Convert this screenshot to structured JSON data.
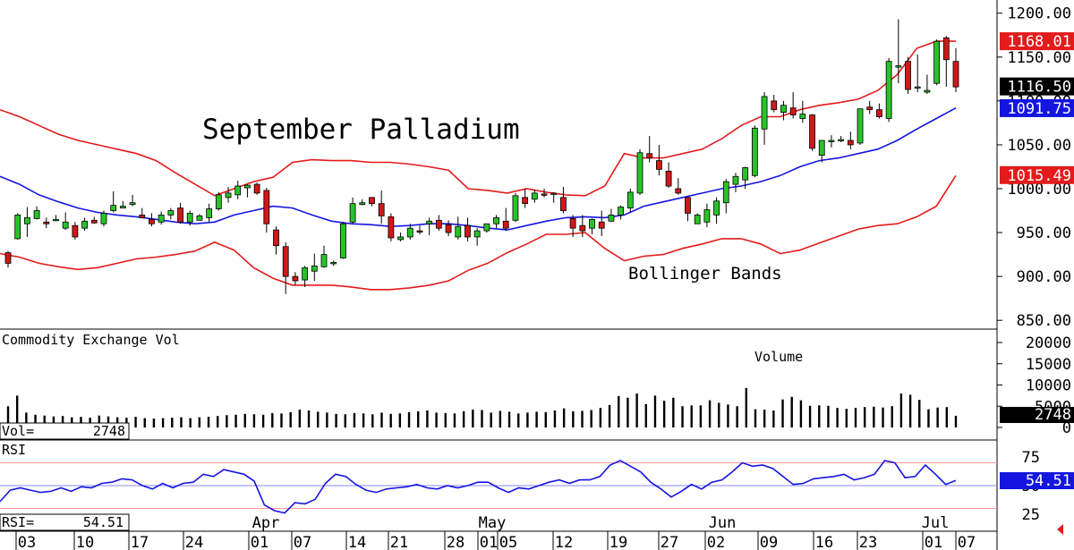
{
  "chart_data": {
    "type": "candlestick",
    "title": "September Palladium",
    "annotations": {
      "bands": "Bollinger Bands",
      "volume": "Volume"
    },
    "price_axis": {
      "ylim": [
        840,
        1215
      ],
      "ticks": [
        "1200.00",
        "1150.00",
        "1100.00",
        "1050.00",
        "1000.00",
        "950.00",
        "900.00",
        "850.00"
      ]
    },
    "price_tags": [
      {
        "text": "1168.01",
        "value": 1168.01,
        "color": "#e31b1b"
      },
      {
        "text": "1116.50",
        "value": 1116.5,
        "color": "#000000"
      },
      {
        "text": "1091.75",
        "value": 1091.75,
        "color": "#1515e0"
      },
      {
        "text": "1015.49",
        "value": 1015.49,
        "color": "#e31b1b"
      }
    ],
    "ohlc": [
      [
        927,
        929,
        910,
        915
      ],
      [
        943,
        972,
        942,
        970
      ],
      [
        960,
        979,
        945,
        967
      ],
      [
        966,
        980,
        965,
        975
      ],
      [
        962,
        967,
        955,
        960
      ],
      [
        964,
        970,
        963,
        965
      ],
      [
        955,
        973,
        953,
        962
      ],
      [
        958,
        962,
        942,
        945
      ],
      [
        955,
        967,
        952,
        963
      ],
      [
        964,
        968,
        960,
        961
      ],
      [
        960,
        975,
        957,
        972
      ],
      [
        975,
        997,
        973,
        981
      ],
      [
        978,
        986,
        978,
        980
      ],
      [
        982,
        993,
        980,
        984
      ],
      [
        970,
        978,
        967,
        967
      ],
      [
        965,
        972,
        957,
        960
      ],
      [
        962,
        974,
        959,
        970
      ],
      [
        970,
        978,
        965,
        975
      ],
      [
        978,
        984,
        960,
        962
      ],
      [
        962,
        975,
        958,
        972
      ],
      [
        964,
        971,
        964,
        969
      ],
      [
        967,
        983,
        962,
        977
      ],
      [
        977,
        996,
        975,
        993
      ],
      [
        990,
        1002,
        984,
        995
      ],
      [
        993,
        1009,
        988,
        1003
      ],
      [
        1001,
        1005,
        990,
        1004
      ],
      [
        1005,
        1007,
        993,
        995
      ],
      [
        998,
        1001,
        950,
        960
      ],
      [
        953,
        957,
        925,
        935
      ],
      [
        934,
        939,
        880,
        900
      ],
      [
        900,
        905,
        890,
        895
      ],
      [
        896,
        912,
        888,
        910
      ],
      [
        906,
        926,
        895,
        912
      ],
      [
        911,
        935,
        910,
        925
      ],
      [
        915,
        918,
        912,
        916
      ],
      [
        921,
        962,
        920,
        960
      ],
      [
        962,
        990,
        960,
        983
      ],
      [
        982,
        988,
        981,
        984
      ],
      [
        990,
        990,
        980,
        983
      ],
      [
        983,
        998,
        960,
        969
      ],
      [
        968,
        972,
        940,
        944
      ],
      [
        942,
        950,
        940,
        945
      ],
      [
        945,
        960,
        942,
        955
      ],
      [
        952,
        958,
        948,
        951
      ],
      [
        960,
        967,
        947,
        963
      ],
      [
        964,
        970,
        952,
        955
      ],
      [
        959,
        964,
        946,
        950
      ],
      [
        945,
        968,
        942,
        957
      ],
      [
        958,
        967,
        940,
        945
      ],
      [
        945,
        955,
        935,
        952
      ],
      [
        952,
        960,
        950,
        960
      ],
      [
        960,
        970,
        955,
        967
      ],
      [
        963,
        978,
        952,
        955
      ],
      [
        964,
        995,
        962,
        992
      ],
      [
        990,
        1000,
        978,
        983
      ],
      [
        988,
        999,
        984,
        995
      ],
      [
        994,
        1000,
        990,
        993
      ],
      [
        995,
        996,
        984,
        994
      ],
      [
        990,
        1002,
        972,
        975
      ],
      [
        966,
        970,
        945,
        955
      ],
      [
        958,
        970,
        945,
        952
      ],
      [
        955,
        966,
        948,
        965
      ],
      [
        962,
        975,
        946,
        955
      ],
      [
        963,
        977,
        962,
        970
      ],
      [
        970,
        981,
        965,
        979
      ],
      [
        978,
        1000,
        973,
        996
      ],
      [
        995,
        1045,
        993,
        1041
      ],
      [
        1040,
        1060,
        1030,
        1035
      ],
      [
        1032,
        1050,
        1015,
        1022
      ],
      [
        1020,
        1030,
        1001,
        1003
      ],
      [
        1000,
        1012,
        993,
        995
      ],
      [
        990,
        990,
        963,
        972
      ],
      [
        960,
        972,
        960,
        970
      ],
      [
        962,
        983,
        956,
        976
      ],
      [
        970,
        990,
        960,
        986
      ],
      [
        984,
        1011,
        972,
        1008
      ],
      [
        1005,
        1018,
        996,
        1014
      ],
      [
        1010,
        1025,
        1000,
        1024
      ],
      [
        1015,
        1072,
        1013,
        1069
      ],
      [
        1068,
        1110,
        1050,
        1105
      ],
      [
        1100,
        1107,
        1087,
        1090
      ],
      [
        1087,
        1100,
        1078,
        1095
      ],
      [
        1092,
        1110,
        1080,
        1084
      ],
      [
        1080,
        1100,
        1075,
        1085
      ],
      [
        1084,
        1085,
        1043,
        1046
      ],
      [
        1038,
        1055,
        1030,
        1055
      ],
      [
        1054,
        1061,
        1047,
        1055
      ],
      [
        1055,
        1060,
        1053,
        1056
      ],
      [
        1055,
        1065,
        1045,
        1050
      ],
      [
        1052,
        1090,
        1050,
        1091
      ],
      [
        1093,
        1100,
        1085,
        1090
      ],
      [
        1090,
        1097,
        1080,
        1082
      ],
      [
        1080,
        1149,
        1076,
        1145
      ],
      [
        1140,
        1193,
        1120,
        1140
      ],
      [
        1145,
        1150,
        1108,
        1113
      ],
      [
        1115,
        1153,
        1110,
        1116
      ],
      [
        1110,
        1130,
        1108,
        1112
      ],
      [
        1120,
        1170,
        1118,
        1168
      ],
      [
        1172,
        1174,
        1116,
        1147
      ],
      [
        1145,
        1160,
        1110,
        1116
      ]
    ],
    "bollinger": {
      "upper": [
        1090,
        1082,
        1072,
        1062,
        1055,
        1050,
        1045,
        1040,
        1032,
        1018,
        1005,
        992,
        1000,
        1008,
        1013,
        1030,
        1033,
        1032,
        1032,
        1030,
        1030,
        1028,
        1025,
        1021,
        1000,
        998,
        995,
        1000,
        996,
        993,
        992,
        1003,
        1040,
        1035,
        1035,
        1040,
        1045,
        1057,
        1072,
        1082,
        1082,
        1090,
        1095,
        1098,
        1102,
        1112,
        1130,
        1160,
        1168,
        1168
      ],
      "middle": [
        1014,
        1005,
        993,
        985,
        978,
        973,
        970,
        968,
        965,
        962,
        960,
        962,
        970,
        975,
        980,
        978,
        970,
        963,
        960,
        959,
        957,
        958,
        960,
        960,
        958,
        955,
        953,
        958,
        963,
        967,
        968,
        967,
        970,
        980,
        985,
        990,
        995,
        1000,
        1003,
        1008,
        1015,
        1025,
        1032,
        1035,
        1040,
        1045,
        1055,
        1068,
        1080,
        1092
      ],
      "lower": [
        926,
        922,
        915,
        911,
        908,
        910,
        915,
        920,
        922,
        925,
        929,
        939,
        930,
        910,
        898,
        890,
        890,
        890,
        888,
        885,
        885,
        887,
        890,
        895,
        907,
        915,
        927,
        937,
        948,
        948,
        950,
        932,
        918,
        923,
        925,
        932,
        937,
        943,
        943,
        937,
        926,
        930,
        938,
        946,
        954,
        958,
        960,
        968,
        980,
        1015
      ]
    },
    "volume": {
      "axis_ticks": [
        "20000",
        "15000",
        "10000",
        "5000",
        "0"
      ],
      "label": "Commodity Exchange Vol",
      "readout": "Vol=",
      "last": "2748",
      "values": [
        5000,
        7500,
        3500,
        3000,
        2800,
        2600,
        2700,
        2400,
        2500,
        2300,
        2800,
        2600,
        2400,
        2300,
        2500,
        2200,
        2100,
        2200,
        2300,
        2400,
        2200,
        2400,
        2500,
        2700,
        2900,
        3000,
        3200,
        3100,
        3000,
        3400,
        3300,
        3600,
        4200,
        4000,
        3700,
        3500,
        3200,
        3100,
        3400,
        3300,
        3100,
        3500,
        3200,
        3300,
        3600,
        3800,
        4000,
        3500,
        3400,
        3300,
        3800,
        4200,
        4100,
        3500,
        3900,
        3700,
        3300,
        3500,
        3700,
        3600,
        4000,
        4500,
        3800,
        3900,
        4100,
        4600,
        5300,
        7400,
        7000,
        8000,
        5500,
        7500,
        6300,
        7000,
        5000,
        5200,
        5200,
        6400,
        5800,
        5400,
        5000,
        9300,
        4300,
        4200,
        4000,
        6600,
        7200,
        6400,
        5100,
        5200,
        5100,
        4600,
        4400,
        4600,
        4800,
        4900,
        4700,
        5000,
        8000,
        7700,
        6500,
        4300,
        4700,
        4800,
        2748
      ]
    },
    "rsi": {
      "label": "RSI",
      "readout": "RSI=",
      "last": "54.51",
      "axis_ticks": [
        "75",
        "50",
        "25"
      ],
      "reference_lines": [
        70,
        50,
        30
      ],
      "values": [
        36,
        46,
        48,
        46,
        44,
        45,
        48,
        45,
        49,
        48,
        52,
        53,
        56,
        55,
        50,
        47,
        52,
        48,
        52,
        53,
        60,
        58,
        64,
        62,
        60,
        54,
        33,
        28,
        26,
        35,
        34,
        38,
        52,
        60,
        58,
        51,
        46,
        44,
        47,
        48,
        49,
        51,
        48,
        47,
        50,
        48,
        50,
        53,
        53,
        48,
        44,
        48,
        47,
        50,
        53,
        55,
        52,
        55,
        55,
        58,
        68,
        72,
        67,
        62,
        53,
        47,
        40,
        45,
        51,
        47,
        53,
        55,
        62,
        70,
        67,
        68,
        65,
        58,
        51,
        52,
        56,
        57,
        58,
        60,
        55,
        57,
        60,
        72,
        70,
        57,
        58,
        68,
        60,
        51,
        54.51
      ]
    },
    "x_axis": {
      "labels": [
        "03",
        "10",
        "17",
        "24",
        "01",
        "07",
        "14",
        "21",
        "28",
        "01",
        "05",
        "12",
        "19",
        "27",
        "02",
        "09",
        "16",
        "23",
        "01",
        "07"
      ],
      "months": [
        "Apr",
        "May",
        "Jun",
        "Jul"
      ]
    }
  }
}
